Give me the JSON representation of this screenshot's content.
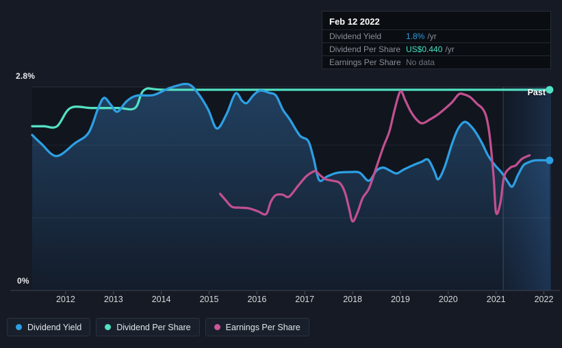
{
  "tooltip": {
    "date": "Feb 12 2022",
    "rows": [
      {
        "label": "Dividend Yield",
        "value": "1.8%",
        "suffix": "/yr",
        "value_color": "#2D9FE3"
      },
      {
        "label": "Dividend Per Share",
        "value": "US$0.440",
        "suffix": "/yr",
        "value_color": "#45E2C4"
      },
      {
        "label": "Earnings Per Share",
        "value": "No data",
        "suffix": "",
        "value_color": "#6E747D"
      }
    ]
  },
  "legend": {
    "items": [
      {
        "label": "Dividend Yield",
        "color": "#2D9FE3"
      },
      {
        "label": "Dividend Per Share",
        "color": "#53E0C3"
      },
      {
        "label": "Earnings Per Share",
        "color": "#CE5598"
      }
    ]
  },
  "annotations": {
    "past_label": "Past"
  },
  "colors": {
    "page_bg": "#161A24",
    "plot_bg": "#10151E",
    "grid_major": "rgba(255,255,255,0.10)",
    "grid_minor": "rgba(255,255,255,0.07)",
    "axis_line": "#3E4654",
    "tick_mark": "#4A5260",
    "fill_top": "#214060",
    "fill_bottom": "#131C2A",
    "band_left": "rgba(48,100,170,0.05)",
    "band_right": "rgba(62,130,210,0.24)",
    "band_edge": "rgba(150,185,235,0.28)",
    "yield_blue": "#2D9FE3",
    "dps_teal": "#53E0C3",
    "eps_pink": "#C0508F"
  },
  "chart_data": {
    "type": "line",
    "x_axis": {
      "unit": "year",
      "range": [
        2011.3,
        2022.15
      ],
      "ticks": [
        2012,
        2013,
        2014,
        2015,
        2016,
        2017,
        2018,
        2019,
        2020,
        2021,
        2022
      ]
    },
    "y_axis": {
      "unit": "%",
      "range": [
        0,
        2.8
      ],
      "tick_labels": [
        "2.8%",
        "0%"
      ],
      "gridlines_pct": [
        2.8,
        2.0,
        1.0
      ],
      "grid": true
    },
    "highlight_band": {
      "x_start_year": 2021.15,
      "x_end_year": 2022.15,
      "label": "Past"
    },
    "legend_position": "bottom-left",
    "series": [
      {
        "name": "Dividend Yield",
        "color": "#2D9FE3",
        "unit": "%",
        "fill": true,
        "end_dot": true,
        "points": [
          [
            2011.3,
            2.14
          ],
          [
            2011.49,
            2.02
          ],
          [
            2011.81,
            1.85
          ],
          [
            2012.2,
            2.03
          ],
          [
            2012.48,
            2.17
          ],
          [
            2012.67,
            2.49
          ],
          [
            2012.8,
            2.65
          ],
          [
            2012.94,
            2.56
          ],
          [
            2013.08,
            2.46
          ],
          [
            2013.27,
            2.6
          ],
          [
            2013.48,
            2.68
          ],
          [
            2013.84,
            2.69
          ],
          [
            2014.19,
            2.79
          ],
          [
            2014.55,
            2.84
          ],
          [
            2014.76,
            2.72
          ],
          [
            2014.98,
            2.49
          ],
          [
            2015.16,
            2.23
          ],
          [
            2015.36,
            2.42
          ],
          [
            2015.55,
            2.71
          ],
          [
            2015.69,
            2.61
          ],
          [
            2015.79,
            2.58
          ],
          [
            2015.93,
            2.69
          ],
          [
            2016.07,
            2.75
          ],
          [
            2016.26,
            2.72
          ],
          [
            2016.4,
            2.68
          ],
          [
            2016.54,
            2.49
          ],
          [
            2016.69,
            2.35
          ],
          [
            2016.9,
            2.13
          ],
          [
            2017.07,
            2.06
          ],
          [
            2017.18,
            1.83
          ],
          [
            2017.3,
            1.52
          ],
          [
            2017.47,
            1.57
          ],
          [
            2017.68,
            1.62
          ],
          [
            2017.97,
            1.63
          ],
          [
            2018.15,
            1.62
          ],
          [
            2018.34,
            1.51
          ],
          [
            2018.5,
            1.65
          ],
          [
            2018.64,
            1.69
          ],
          [
            2018.78,
            1.65
          ],
          [
            2018.92,
            1.61
          ],
          [
            2019.06,
            1.66
          ],
          [
            2019.25,
            1.72
          ],
          [
            2019.44,
            1.77
          ],
          [
            2019.58,
            1.8
          ],
          [
            2019.71,
            1.64
          ],
          [
            2019.79,
            1.53
          ],
          [
            2019.92,
            1.69
          ],
          [
            2020.08,
            2.02
          ],
          [
            2020.21,
            2.23
          ],
          [
            2020.35,
            2.32
          ],
          [
            2020.49,
            2.25
          ],
          [
            2020.6,
            2.15
          ],
          [
            2020.72,
            2.01
          ],
          [
            2020.83,
            1.86
          ],
          [
            2020.97,
            1.73
          ],
          [
            2021.12,
            1.62
          ],
          [
            2021.24,
            1.5
          ],
          [
            2021.34,
            1.43
          ],
          [
            2021.46,
            1.59
          ],
          [
            2021.57,
            1.72
          ],
          [
            2021.67,
            1.76
          ],
          [
            2021.81,
            1.79
          ],
          [
            2022.12,
            1.79
          ]
        ]
      },
      {
        "name": "Dividend Per Share",
        "color": "#53E0C3",
        "unit": "US$",
        "fill": false,
        "end_dot": true,
        "plot_scale_to_pct": 6.277,
        "points": [
          [
            2011.3,
            0.36
          ],
          [
            2011.55,
            0.36
          ],
          [
            2011.82,
            0.36
          ],
          [
            2012.1,
            0.4
          ],
          [
            2012.55,
            0.4
          ],
          [
            2013.1,
            0.4
          ],
          [
            2013.45,
            0.4
          ],
          [
            2013.65,
            0.44
          ],
          [
            2014.1,
            0.44
          ],
          [
            2016.0,
            0.44
          ],
          [
            2018.0,
            0.44
          ],
          [
            2020.0,
            0.44
          ],
          [
            2021.5,
            0.44
          ],
          [
            2022.12,
            0.44
          ]
        ]
      },
      {
        "name": "Earnings Per Share",
        "color": "#C0508F",
        "unit": "plotted vs % axis (own scale, unlabeled)",
        "fill": false,
        "end_dot": false,
        "points": [
          [
            2015.23,
            1.33
          ],
          [
            2015.35,
            1.24
          ],
          [
            2015.48,
            1.15
          ],
          [
            2015.65,
            1.14
          ],
          [
            2015.83,
            1.13
          ],
          [
            2016.02,
            1.09
          ],
          [
            2016.19,
            1.05
          ],
          [
            2016.29,
            1.22
          ],
          [
            2016.39,
            1.31
          ],
          [
            2016.53,
            1.32
          ],
          [
            2016.67,
            1.29
          ],
          [
            2016.86,
            1.44
          ],
          [
            2017.03,
            1.57
          ],
          [
            2017.16,
            1.63
          ],
          [
            2017.23,
            1.64
          ],
          [
            2017.33,
            1.58
          ],
          [
            2017.44,
            1.53
          ],
          [
            2017.58,
            1.51
          ],
          [
            2017.73,
            1.48
          ],
          [
            2017.84,
            1.35
          ],
          [
            2017.93,
            1.12
          ],
          [
            2018.0,
            0.95
          ],
          [
            2018.1,
            1.07
          ],
          [
            2018.21,
            1.27
          ],
          [
            2018.34,
            1.4
          ],
          [
            2018.48,
            1.66
          ],
          [
            2018.64,
            1.97
          ],
          [
            2018.77,
            2.19
          ],
          [
            2018.88,
            2.49
          ],
          [
            2019.0,
            2.74
          ],
          [
            2019.1,
            2.62
          ],
          [
            2019.21,
            2.47
          ],
          [
            2019.34,
            2.35
          ],
          [
            2019.46,
            2.3
          ],
          [
            2019.61,
            2.35
          ],
          [
            2019.78,
            2.42
          ],
          [
            2019.93,
            2.5
          ],
          [
            2020.08,
            2.59
          ],
          [
            2020.22,
            2.7
          ],
          [
            2020.32,
            2.7
          ],
          [
            2020.46,
            2.66
          ],
          [
            2020.6,
            2.57
          ],
          [
            2020.72,
            2.5
          ],
          [
            2020.8,
            2.38
          ],
          [
            2020.87,
            2.11
          ],
          [
            2020.95,
            1.55
          ],
          [
            2021.0,
            1.07
          ],
          [
            2021.09,
            1.2
          ],
          [
            2021.17,
            1.57
          ],
          [
            2021.3,
            1.69
          ],
          [
            2021.41,
            1.72
          ],
          [
            2021.54,
            1.81
          ],
          [
            2021.7,
            1.86
          ]
        ]
      }
    ]
  }
}
